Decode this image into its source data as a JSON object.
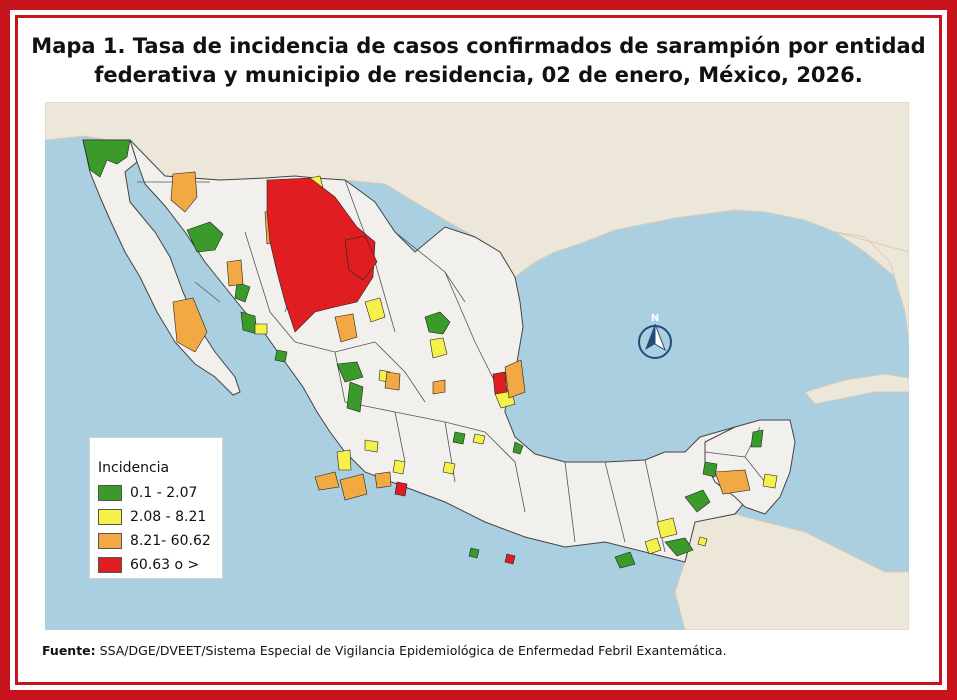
{
  "title": "Mapa 1. Tasa de incidencia de casos confirmados de sarampión por entidad federativa y municipio de residencia, 02 de enero, México, 2026.",
  "legend": {
    "title": "Incidencia",
    "items": [
      {
        "label": "0.1 - 2.07",
        "color": "#3a9a2a"
      },
      {
        "label": "2.08 - 8.21",
        "color": "#f6f04a"
      },
      {
        "label": "8.21- 60.62",
        "color": "#f2a944"
      },
      {
        "label": "60.63 o >",
        "color": "#e01e22"
      }
    ]
  },
  "north_arrow": "N",
  "source": {
    "label": "Fuente:",
    "text": "SSA/DGE/DVEET/Sistema Especial de Vigilancia Epidemiológica de Enfermedad Febril Exantemática."
  },
  "colors": {
    "frame": "#c8141c",
    "sea": "#a9cfe0",
    "land_outside": "#ede7da",
    "land_mexico": "#f2f0ec"
  },
  "icons": [
    "north-arrow-icon"
  ]
}
